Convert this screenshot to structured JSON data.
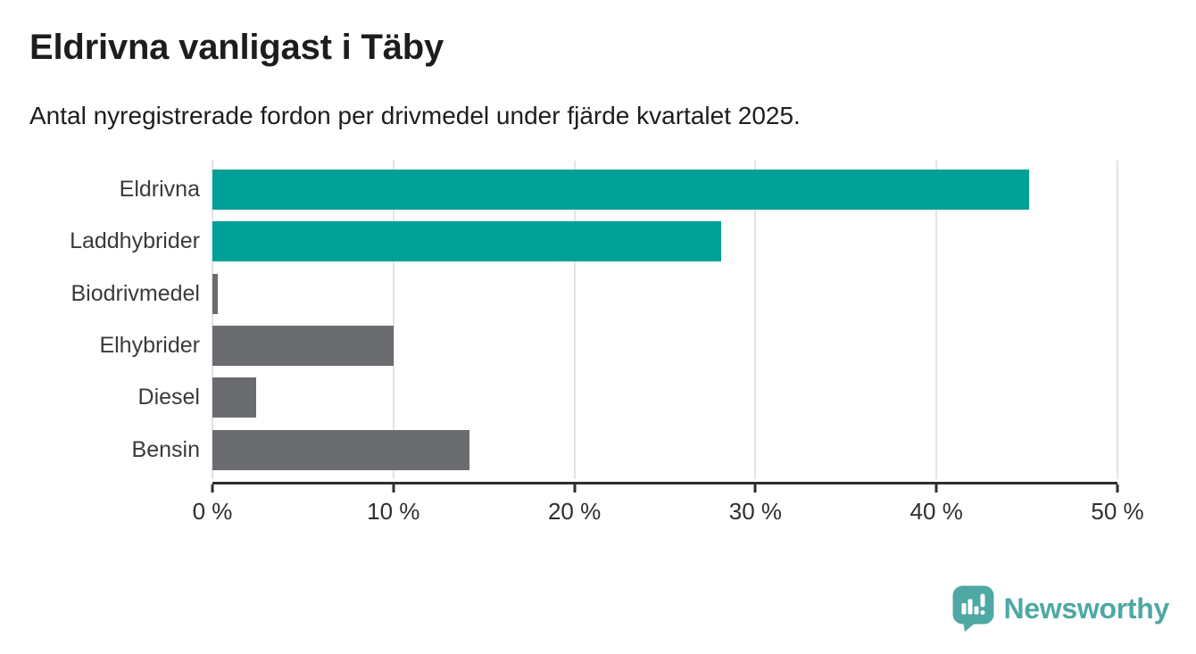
{
  "header": {
    "title": "Eldrivna vanligast i Täby",
    "subtitle": "Antal nyregistrerade fordon per drivmedel under fjärde kvartalet 2025."
  },
  "chart_data": {
    "type": "bar",
    "orientation": "horizontal",
    "title": "Eldrivna vanligast i Täby",
    "subtitle": "Antal nyregistrerade fordon per drivmedel under fjärde kvartalet 2025.",
    "categories": [
      "Eldrivna",
      "Laddhybrider",
      "Biodrivmedel",
      "Elhybrider",
      "Diesel",
      "Bensin"
    ],
    "values": [
      45.1,
      28.1,
      0.3,
      10,
      2.4,
      14.2
    ],
    "unit": "%",
    "xlim": [
      0,
      50
    ],
    "x_ticks": [
      "0 %",
      "10 %",
      "20 %",
      "30 %",
      "40 %",
      "50 %"
    ],
    "x_tick_values": [
      0,
      10,
      20,
      30,
      40,
      50
    ],
    "bar_colors": [
      "#00A096",
      "#00A096",
      "#6B6C70",
      "#6B6C70",
      "#6B6C70",
      "#6B6C70"
    ],
    "grid": true,
    "legend": false
  },
  "footer": {
    "brand": "Newsworthy",
    "logo_icon": "speech-bubble-bar-chart-icon"
  },
  "colors": {
    "bar_teal": "#00A096",
    "bar_gray": "#6B6C70",
    "gridline": "#E3E3E3",
    "axis": "#2E2E2E",
    "text_dark": "#1D1D1B",
    "label_gray": "#3A3A3A",
    "brand_teal": "#4FA8A3"
  }
}
